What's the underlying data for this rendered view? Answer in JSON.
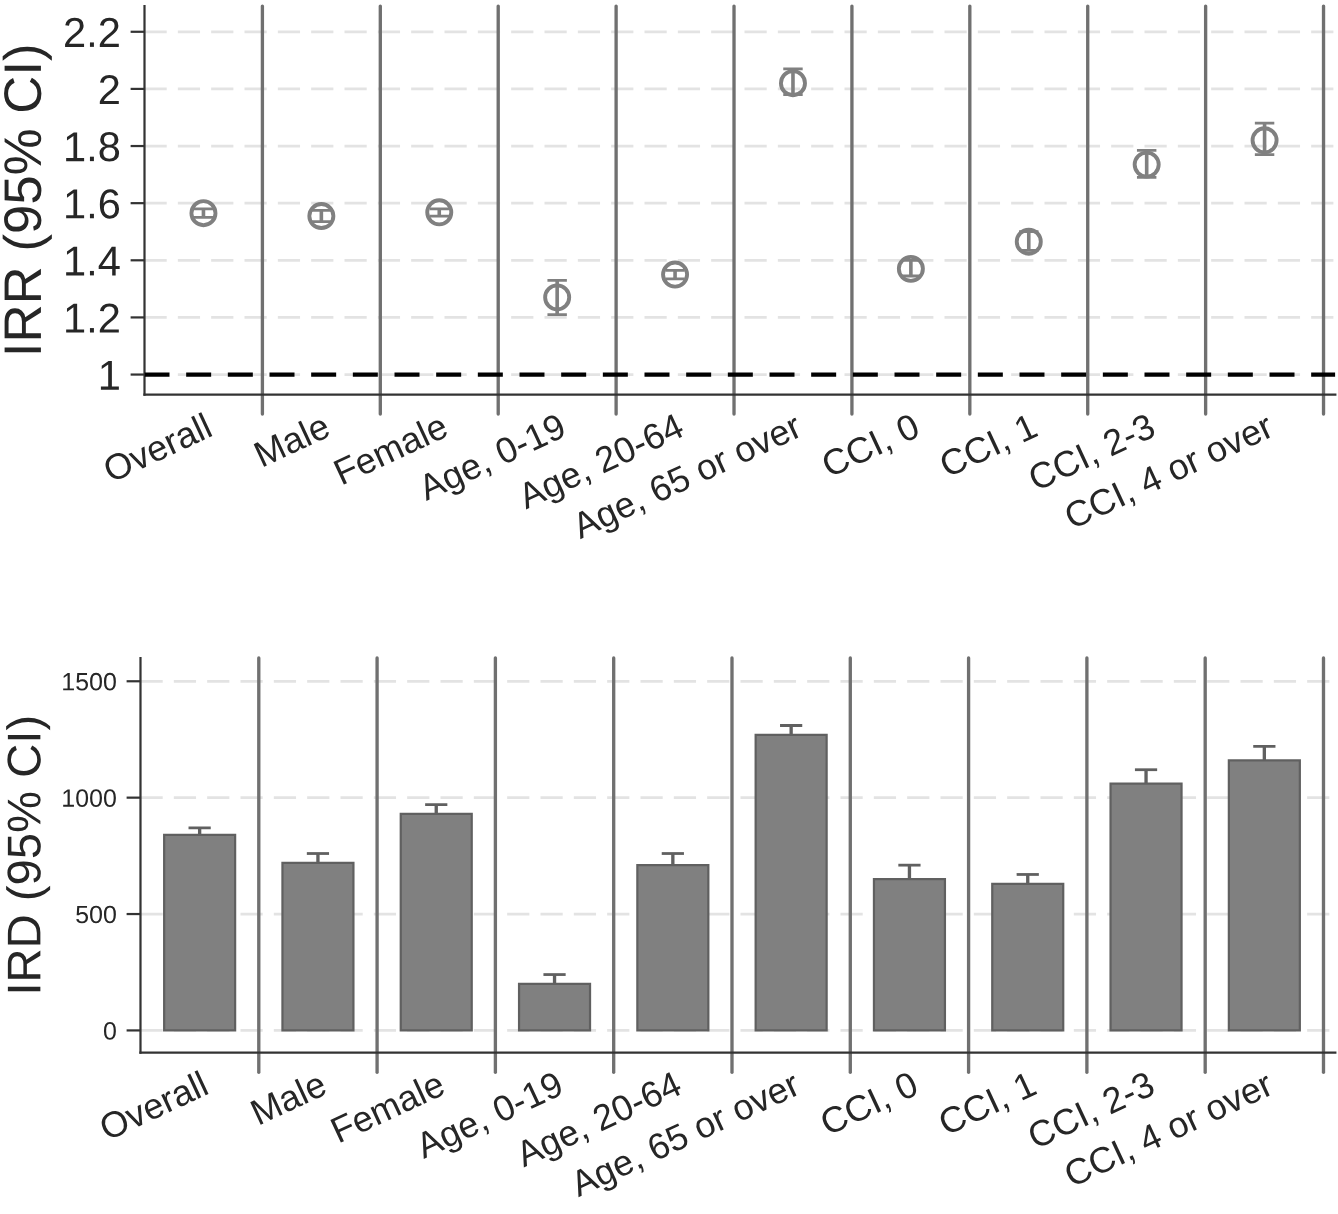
{
  "chart_data": [
    {
      "type": "scatter",
      "ylabel": "IRR (95% CI)",
      "categories": [
        "Overall",
        "Male",
        "Female",
        "Age, 0-19",
        "Age, 20-64",
        "Age, 65 or over",
        "CCI, 0",
        "CCI, 1",
        "CCI, 2-3",
        "CCI, 4 or over"
      ],
      "series": [
        {
          "color": "#808080",
          "values": [
            1.565,
            1.555,
            1.568,
            1.27,
            1.35,
            2.02,
            1.37,
            1.465,
            1.735,
            1.82
          ],
          "errors": [
            [
              1.55,
              1.58
            ],
            [
              1.535,
              1.575
            ],
            [
              1.555,
              1.58
            ],
            [
              1.21,
              1.33
            ],
            [
              1.335,
              1.365
            ],
            [
              1.98,
              2.07
            ],
            [
              1.345,
              1.4
            ],
            [
              1.435,
              1.5
            ],
            [
              1.69,
              1.785
            ],
            [
              1.77,
              1.88
            ]
          ]
        }
      ],
      "marker": "circle",
      "ylim": [
        0.93,
        2.29
      ],
      "yticks": [
        {
          "value": 1,
          "label": "1"
        },
        1.2,
        1.4,
        1.6,
        1.8,
        {
          "value": 2,
          "label": "2"
        },
        2.2
      ],
      "ref_lines": [
        {
          "axis": "y",
          "value": 1,
          "color": "#000000",
          "line_style": "dashed"
        }
      ],
      "grid": true
    },
    {
      "type": "bar",
      "ylabel": "IRD (95% CI)",
      "categories": [
        "Overall",
        "Male",
        "Female",
        "Age, 0-19",
        "Age, 20-64",
        "Age, 65 or over",
        "CCI, 0",
        "CCI, 1",
        "CCI, 2-3",
        "CCI, 4 or over"
      ],
      "series": [
        {
          "color": "#808080",
          "values": [
            840,
            720,
            930,
            200,
            710,
            1270,
            650,
            630,
            1060,
            1160
          ],
          "errors": [
            30,
            40,
            40,
            40,
            50,
            40,
            60,
            40,
            60,
            60
          ]
        }
      ],
      "ylim": [
        -95,
        1600
      ],
      "yticks": [
        0,
        500,
        1000,
        1500
      ],
      "grid": true
    }
  ]
}
